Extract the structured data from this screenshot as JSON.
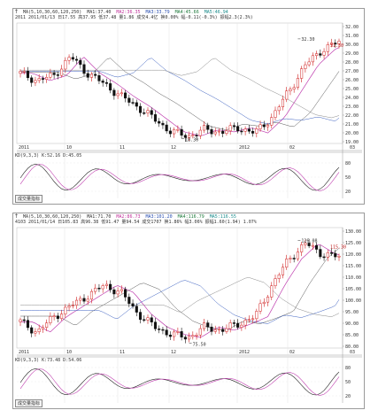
{
  "panel1": {
    "header": {
      "code": "Ť",
      "ma_label": "MA(5,10,30,60,120,250)",
      "ma1": "MA1:37.40",
      "ma2": "MA2:36.35",
      "ma3": "MA3:33.79",
      "ma4": "MA4:45.66",
      "ma5": "MA5:46.94",
      "line2": "2011 2011/01/13 日17.55 高37.95 低37.48 量1.86 成交4.4亿 换0.00% 幅-0.11(-0.3%) 振幅2.3(2.3%)"
    },
    "price_labels": [
      "32.30",
      "31.30",
      "18.30"
    ],
    "x_labels": [
      "2011",
      "10",
      "11",
      "12",
      "2012",
      "02",
      "03"
    ],
    "y_labels": [
      "32.00",
      "31.00",
      "30.00",
      "29.00",
      "28.00",
      "27.00",
      "26.00",
      "25.00",
      "24.00",
      "23.00",
      "22.00",
      "21.00",
      "20.00",
      "19.00"
    ],
    "kdj_label": "KD(9,3,3) K:52.16 D:45.05",
    "kdj_axis": [
      "80",
      "50",
      "20"
    ],
    "tab_label": "成交量指标"
  },
  "panel2": {
    "header": {
      "code": "Ť",
      "ma_label": "MA(5,10,30,60,120,250)",
      "ma1": "MA1:71.70",
      "ma2": "MA2:86.73",
      "ma3": "MA3:101.20",
      "ma4": "MA4:116.79",
      "ma5": "MA5:116.55",
      "line2": "4103 2011/01/14 日105.83 高96.38 低91.47 量94.54 成交1707 换1.86% 幅3.06% 振幅1.60(1.94) 1.07%"
    },
    "price_labels": [
      "126.08",
      "115.30",
      "75.50"
    ],
    "x_labels": [
      "2011",
      "10",
      "11",
      "12",
      "2012",
      "02",
      "03"
    ],
    "y_labels": [
      "130.00",
      "125.00",
      "120.00",
      "115.00",
      "110.00",
      "105.00",
      "100.00",
      "95.00",
      "90.00",
      "85.00",
      "80.00"
    ],
    "kdj_label": "KD(9,3,3) K:73.48 D:54.06",
    "kdj_axis": [
      "80",
      "50",
      "20"
    ],
    "tab_label": "成交量指标"
  },
  "colors": {
    "up": "#d02020",
    "down": "#111111",
    "ma_pink": "#c040b0",
    "ma_blue": "#3a5fc0",
    "ma_gray": "#555555",
    "ma_red": "#c03030",
    "k_line": "#222222",
    "d_line": "#c040b0"
  }
}
